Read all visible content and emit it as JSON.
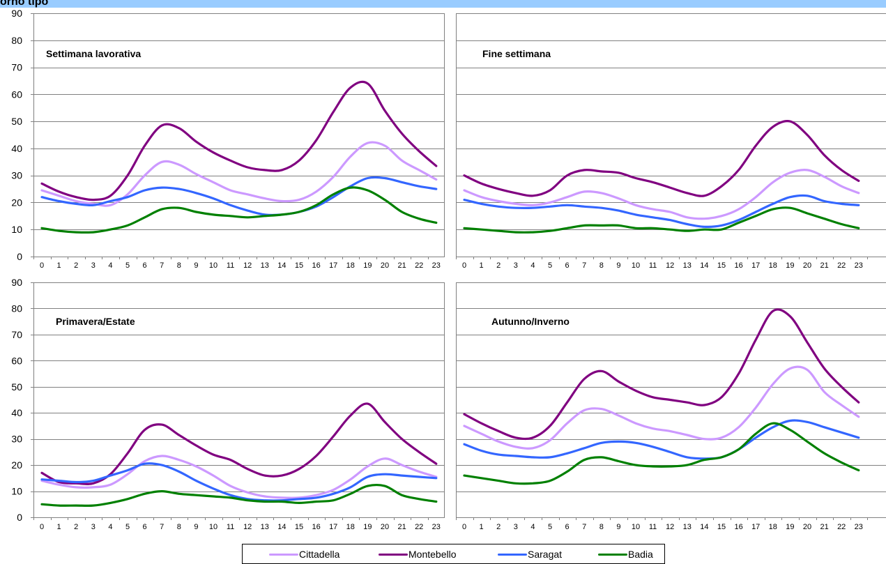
{
  "header": {
    "title": "orno tipo"
  },
  "colors": {
    "Cittadella": "#cc99ff",
    "Montebello": "#800080",
    "Saragat": "#3366ff",
    "Badia": "#008000",
    "grid": "#808080",
    "axis": "#808080",
    "header_bg": "#99ccff"
  },
  "chart_data": [
    {
      "type": "line",
      "title": "Settimana lavorativa",
      "x": [
        0,
        1,
        2,
        3,
        4,
        5,
        6,
        7,
        8,
        9,
        10,
        11,
        12,
        13,
        14,
        15,
        16,
        17,
        18,
        19,
        20,
        21,
        22,
        23
      ],
      "ylim": [
        0,
        90
      ],
      "yticks": [
        0,
        10,
        20,
        30,
        40,
        50,
        60,
        70,
        80,
        90
      ],
      "series": [
        {
          "name": "Cittadella",
          "values": [
            24.5,
            22.5,
            20.5,
            19.5,
            19.0,
            23.0,
            30.0,
            35.0,
            34.0,
            30.5,
            27.5,
            24.5,
            23.0,
            21.5,
            20.5,
            21.0,
            24.0,
            29.5,
            37.0,
            42.0,
            41.0,
            35.5,
            32.0,
            28.5
          ]
        },
        {
          "name": "Montebello",
          "values": [
            27.0,
            24.0,
            22.0,
            21.0,
            22.5,
            30.0,
            41.0,
            48.5,
            47.5,
            42.5,
            38.5,
            35.5,
            33.0,
            32.0,
            32.0,
            35.5,
            43.0,
            53.5,
            62.5,
            64.0,
            54.0,
            45.5,
            39.0,
            33.5
          ]
        },
        {
          "name": "Saragat",
          "values": [
            22.0,
            20.5,
            19.5,
            19.0,
            20.5,
            22.0,
            24.5,
            25.5,
            25.0,
            23.5,
            21.5,
            19.0,
            17.0,
            15.5,
            15.5,
            16.5,
            18.5,
            22.0,
            26.0,
            29.0,
            29.0,
            27.5,
            26.0,
            25.0
          ]
        },
        {
          "name": "Badia",
          "values": [
            10.5,
            9.5,
            9.0,
            9.0,
            10.0,
            11.5,
            14.5,
            17.5,
            18.0,
            16.5,
            15.5,
            15.0,
            14.5,
            15.0,
            15.5,
            16.5,
            19.0,
            23.0,
            25.5,
            24.5,
            21.0,
            16.5,
            14.0,
            12.5
          ]
        }
      ]
    },
    {
      "type": "line",
      "title": "Fine settimana",
      "x": [
        0,
        1,
        2,
        3,
        4,
        5,
        6,
        7,
        8,
        9,
        10,
        11,
        12,
        13,
        14,
        15,
        16,
        17,
        18,
        19,
        20,
        21,
        22,
        23
      ],
      "ylim": [
        0,
        90
      ],
      "series": [
        {
          "name": "Cittadella",
          "values": [
            24.5,
            22.0,
            20.5,
            19.5,
            19.0,
            20.0,
            22.0,
            24.0,
            23.5,
            21.5,
            19.0,
            17.5,
            16.5,
            14.5,
            14.0,
            15.0,
            17.5,
            22.0,
            27.5,
            31.0,
            32.0,
            29.5,
            26.0,
            23.5
          ]
        },
        {
          "name": "Montebello",
          "values": [
            30.0,
            27.0,
            25.0,
            23.5,
            22.5,
            24.5,
            30.0,
            32.0,
            31.5,
            31.0,
            29.0,
            27.5,
            25.5,
            23.5,
            22.5,
            26.0,
            32.0,
            41.0,
            48.0,
            50.0,
            45.0,
            37.5,
            32.0,
            28.0
          ]
        },
        {
          "name": "Saragat",
          "values": [
            21.0,
            19.5,
            18.5,
            18.0,
            18.0,
            18.5,
            19.0,
            18.5,
            18.0,
            17.0,
            15.5,
            14.5,
            13.5,
            12.0,
            11.0,
            11.5,
            13.5,
            16.5,
            19.5,
            22.0,
            22.5,
            20.5,
            19.5,
            19.0
          ]
        },
        {
          "name": "Badia",
          "values": [
            10.5,
            10.0,
            9.5,
            9.0,
            9.0,
            9.5,
            10.5,
            11.5,
            11.5,
            11.5,
            10.5,
            10.5,
            10.0,
            9.5,
            10.0,
            10.0,
            12.5,
            15.0,
            17.5,
            18.0,
            16.0,
            14.0,
            12.0,
            10.5
          ]
        }
      ]
    },
    {
      "type": "line",
      "title": "Primavera/Estate",
      "x": [
        0,
        1,
        2,
        3,
        4,
        5,
        6,
        7,
        8,
        9,
        10,
        11,
        12,
        13,
        14,
        15,
        16,
        17,
        18,
        19,
        20,
        21,
        22,
        23
      ],
      "ylim": [
        0,
        90
      ],
      "yticks": [
        0,
        10,
        20,
        30,
        40,
        50,
        60,
        70,
        80,
        90
      ],
      "series": [
        {
          "name": "Cittadella",
          "values": [
            14.0,
            12.5,
            11.5,
            11.5,
            12.5,
            16.5,
            21.5,
            23.5,
            22.0,
            19.5,
            16.0,
            12.0,
            9.5,
            8.0,
            7.5,
            7.5,
            8.5,
            10.5,
            14.5,
            19.5,
            22.5,
            20.0,
            17.5,
            15.5
          ]
        },
        {
          "name": "Montebello",
          "values": [
            17.0,
            13.5,
            13.0,
            13.0,
            16.5,
            24.5,
            33.5,
            35.5,
            31.5,
            27.5,
            24.0,
            22.0,
            18.5,
            16.0,
            16.0,
            18.5,
            23.5,
            31.0,
            39.0,
            43.5,
            36.5,
            30.0,
            25.0,
            20.5
          ]
        },
        {
          "name": "Saragat",
          "values": [
            14.5,
            14.0,
            13.5,
            14.0,
            16.0,
            18.0,
            20.5,
            20.0,
            17.5,
            14.0,
            11.0,
            8.5,
            7.0,
            6.5,
            6.5,
            7.0,
            7.5,
            9.0,
            11.5,
            15.5,
            16.5,
            16.0,
            15.5,
            15.0
          ]
        },
        {
          "name": "Badia",
          "values": [
            5.0,
            4.5,
            4.5,
            4.5,
            5.5,
            7.0,
            9.0,
            10.0,
            9.0,
            8.5,
            8.0,
            7.5,
            6.5,
            6.0,
            6.0,
            5.5,
            6.0,
            6.5,
            9.0,
            12.0,
            12.0,
            8.5,
            7.0,
            6.0
          ]
        }
      ]
    },
    {
      "type": "line",
      "title": "Autunno/Inverno",
      "x": [
        0,
        1,
        2,
        3,
        4,
        5,
        6,
        7,
        8,
        9,
        10,
        11,
        12,
        13,
        14,
        15,
        16,
        17,
        18,
        19,
        20,
        21,
        22,
        23
      ],
      "ylim": [
        0,
        90
      ],
      "series": [
        {
          "name": "Cittadella",
          "values": [
            35.0,
            32.0,
            29.0,
            27.0,
            26.5,
            29.5,
            36.0,
            41.0,
            41.5,
            39.0,
            36.0,
            34.0,
            33.0,
            31.5,
            30.0,
            30.5,
            34.5,
            42.0,
            51.0,
            57.0,
            56.5,
            48.0,
            43.0,
            38.5
          ]
        },
        {
          "name": "Montebello",
          "values": [
            39.5,
            36.0,
            33.0,
            30.5,
            30.5,
            35.0,
            44.0,
            53.0,
            56.0,
            52.0,
            48.5,
            46.0,
            45.0,
            44.0,
            43.0,
            46.0,
            55.0,
            68.0,
            79.0,
            77.0,
            67.0,
            57.0,
            50.0,
            44.0
          ]
        },
        {
          "name": "Saragat",
          "values": [
            28.0,
            25.5,
            24.0,
            23.5,
            23.0,
            23.0,
            24.5,
            26.5,
            28.5,
            29.0,
            28.5,
            27.0,
            25.0,
            23.0,
            22.5,
            23.0,
            26.0,
            30.5,
            34.5,
            37.0,
            36.5,
            34.5,
            32.5,
            30.5
          ]
        },
        {
          "name": "Badia",
          "values": [
            16.0,
            15.0,
            14.0,
            13.0,
            13.0,
            14.0,
            17.5,
            22.0,
            23.0,
            21.5,
            20.0,
            19.5,
            19.5,
            20.0,
            22.0,
            23.0,
            26.0,
            32.0,
            36.0,
            33.5,
            29.0,
            24.5,
            21.0,
            18.0
          ]
        }
      ]
    }
  ],
  "legend": {
    "entries": [
      "Cittadella",
      "Montebello",
      "Saragat",
      "Badia"
    ]
  }
}
